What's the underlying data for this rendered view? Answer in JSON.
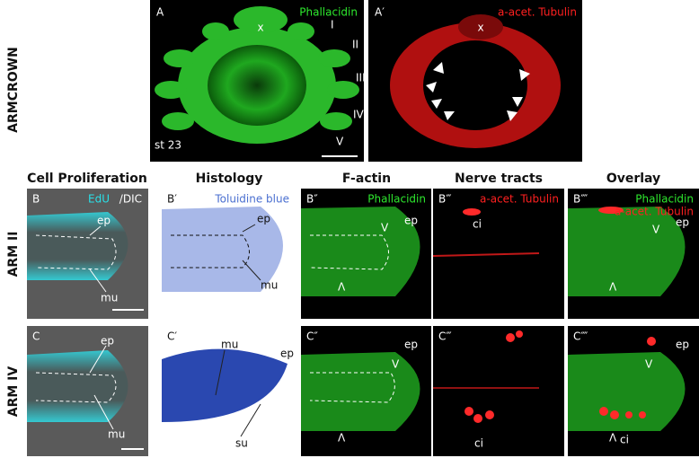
{
  "side_labels": [
    "ARMCROWN",
    "ARM II",
    "ARM IV"
  ],
  "panel_a": {
    "label": "A",
    "stain": "Phallacidin",
    "marker": "x",
    "arms": [
      "I",
      "II",
      "III",
      "IV",
      "V"
    ],
    "stage": "st 23"
  },
  "panel_a2": {
    "label": "A′",
    "stain": "a-acet. Tubulin",
    "marker": "x"
  },
  "columns": [
    "Cell Proliferation",
    "Histology",
    "F-actin",
    "Nerve tracts",
    "Overlay"
  ],
  "rows": [
    {
      "panels": [
        {
          "label": "B",
          "stain": [
            "EdU",
            "/DIC"
          ],
          "annotations": [
            "ep",
            "mu"
          ]
        },
        {
          "label": "B′",
          "stain": [
            "Toluidine blue"
          ],
          "annotations": [
            "ep",
            "mu"
          ]
        },
        {
          "label": "B″",
          "stain": [
            "Phallacidin"
          ],
          "annotations": [
            "ep",
            "V",
            "Λ"
          ]
        },
        {
          "label": "B‴",
          "stain": [
            "a-acet. Tubulin"
          ],
          "annotations": [
            "ci"
          ]
        },
        {
          "label": "B⁗",
          "stain": [
            "Phallacidin",
            "a-acet. Tubulin"
          ],
          "annotations": [
            "ep",
            "V",
            "Λ"
          ]
        }
      ]
    },
    {
      "panels": [
        {
          "label": "C",
          "annotations": [
            "ep",
            "mu"
          ]
        },
        {
          "label": "C′",
          "annotations": [
            "mu",
            "ep",
            "su"
          ]
        },
        {
          "label": "C″",
          "annotations": [
            "ep",
            "V",
            "Λ"
          ]
        },
        {
          "label": "C‴",
          "annotations": [
            "ci"
          ]
        },
        {
          "label": "C⁗",
          "annotations": [
            "ep",
            "V",
            "Λ",
            "ci"
          ]
        }
      ]
    }
  ]
}
